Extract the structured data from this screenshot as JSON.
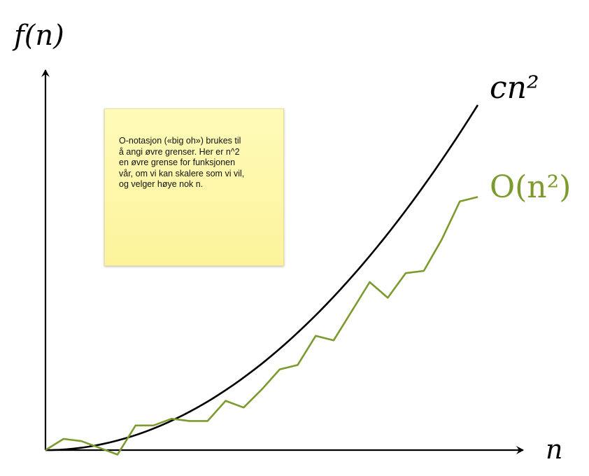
{
  "labels": {
    "y_axis": "f(n)",
    "x_axis": "n",
    "upper_bound": "cn²",
    "bounded_function": "O(n²)"
  },
  "note": {
    "text": "O-notasjon («big oh») brukes til\nå angi øvre grenser. Her er n^2\nen øvre grense for funksjonen\nvår, om vi kan skalere som vi vil,\nog velger høye nok n."
  },
  "colors": {
    "axis": "#000000",
    "upper_bound_curve": "#000000",
    "function_curve": "#7c9a2e",
    "note_background": "#fdf6a6"
  },
  "chart_data": {
    "type": "line",
    "series": [
      {
        "name": "cn²",
        "shape": "parabola"
      },
      {
        "name": "O(n²)",
        "shape": "jagged-rising",
        "values": [
          0.0,
          0.05,
          0.04,
          0.01,
          -0.02,
          0.11,
          0.11,
          0.14,
          0.13,
          0.13,
          0.22,
          0.19,
          0.27,
          0.36,
          0.38,
          0.51,
          0.49,
          0.62,
          0.75,
          0.68,
          0.79,
          0.8,
          0.94,
          1.11,
          1.13
        ]
      }
    ]
  }
}
